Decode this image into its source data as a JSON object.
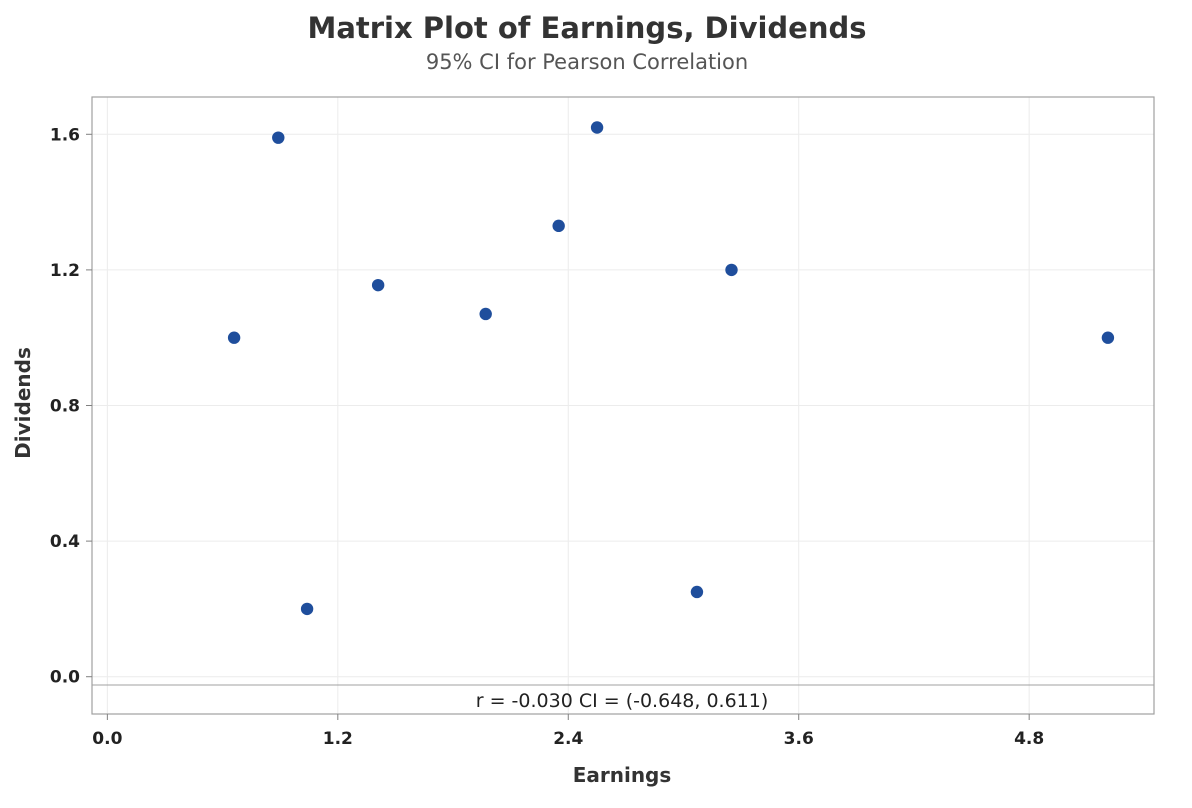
{
  "chart_data": {
    "type": "scatter",
    "title": "Matrix Plot of Earnings, Dividends",
    "subtitle": "95% CI for Pearson Correlation",
    "xlabel": "Earnings",
    "ylabel": "Dividends",
    "xlim": [
      -0.08,
      5.45
    ],
    "ylim": [
      -0.11,
      1.71
    ],
    "xticks": [
      0.0,
      1.2,
      2.4,
      3.6,
      4.8
    ],
    "xtick_labels": [
      "0.0",
      "1.2",
      "2.4",
      "3.6",
      "4.8"
    ],
    "yticks": [
      0.0,
      0.4,
      0.8,
      1.2,
      1.6
    ],
    "ytick_labels": [
      "0.0",
      "0.4",
      "0.8",
      "1.2",
      "1.6"
    ],
    "grid": true,
    "point_color": "#1f4e9c",
    "points": [
      {
        "x": 0.66,
        "y": 1.0
      },
      {
        "x": 0.89,
        "y": 1.59
      },
      {
        "x": 1.04,
        "y": 0.2
      },
      {
        "x": 1.41,
        "y": 1.155
      },
      {
        "x": 1.97,
        "y": 1.07
      },
      {
        "x": 2.35,
        "y": 1.33
      },
      {
        "x": 2.55,
        "y": 1.62
      },
      {
        "x": 3.07,
        "y": 0.25
      },
      {
        "x": 3.25,
        "y": 1.2
      },
      {
        "x": 5.21,
        "y": 1.0
      }
    ],
    "annotation": "r = -0.030  CI = (-0.648, 0.611)"
  }
}
